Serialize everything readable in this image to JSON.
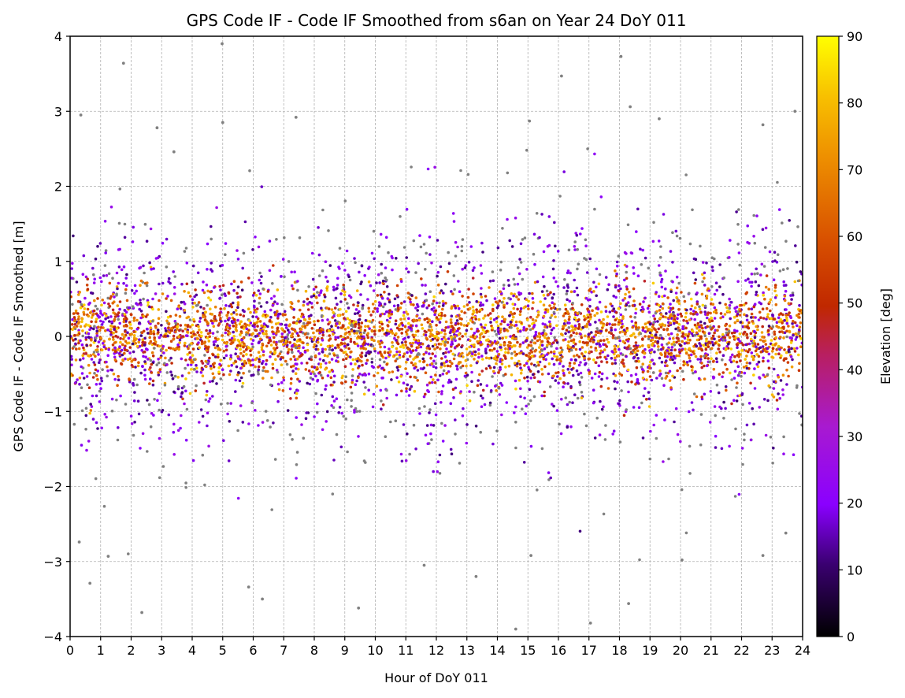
{
  "chart_data": {
    "type": "scatter",
    "title": "GPS Code IF - Code IF Smoothed from s6an on Year 24 DoY 011",
    "xlabel": "Hour of DoY 011",
    "ylabel": "GPS Code IF - Code IF Smoothed [m]",
    "xlim": [
      0,
      24
    ],
    "ylim": [
      -4,
      4
    ],
    "xticks": [
      "0",
      "1",
      "2",
      "3",
      "4",
      "5",
      "6",
      "7",
      "8",
      "9",
      "10",
      "11",
      "12",
      "13",
      "14",
      "15",
      "16",
      "17",
      "18",
      "19",
      "20",
      "21",
      "22",
      "23",
      "24"
    ],
    "yticks": [
      "−4",
      "−3",
      "−2",
      "−1",
      "0",
      "1",
      "2",
      "3",
      "4"
    ],
    "grid": true,
    "colorbar": {
      "label": "Elevation [deg]",
      "range": [
        0,
        90
      ],
      "ticks": [
        "0",
        "10",
        "20",
        "30",
        "40",
        "50",
        "60",
        "70",
        "80",
        "90"
      ],
      "colormap": "gnuplot",
      "masked_color": "#808080"
    },
    "distribution": {
      "description_values": "residuals concentrated within ±1 m, mean ≈ 0, scattered outliers out to about ±3.9 m",
      "core_sigma_m": 0.4,
      "outer_sigma_m": 0.85,
      "outliers": [
        {
          "x": 4.98,
          "y": 3.9
        },
        {
          "x": 1.75,
          "y": 3.64
        },
        {
          "x": 18.05,
          "y": 3.73
        },
        {
          "x": 16.1,
          "y": 3.47
        },
        {
          "x": 18.35,
          "y": 3.06
        },
        {
          "x": 5.0,
          "y": 2.85
        },
        {
          "x": 0.35,
          "y": 2.95
        },
        {
          "x": 7.4,
          "y": 2.92
        },
        {
          "x": 23.75,
          "y": 3.0
        },
        {
          "x": 19.3,
          "y": 2.9
        },
        {
          "x": 22.7,
          "y": 2.82
        },
        {
          "x": 15.05,
          "y": 2.87
        },
        {
          "x": 2.85,
          "y": 2.78
        },
        {
          "x": 3.4,
          "y": 2.46
        },
        {
          "x": 0.65,
          "y": -3.29
        },
        {
          "x": 2.35,
          "y": -3.68
        },
        {
          "x": 5.85,
          "y": -3.34
        },
        {
          "x": 6.3,
          "y": -3.5
        },
        {
          "x": 9.45,
          "y": -3.62
        },
        {
          "x": 14.6,
          "y": -3.9
        },
        {
          "x": 17.05,
          "y": -3.82
        },
        {
          "x": 18.3,
          "y": -3.56
        },
        {
          "x": 13.3,
          "y": -3.2
        },
        {
          "x": 11.6,
          "y": -3.05
        },
        {
          "x": 20.05,
          "y": -2.98
        },
        {
          "x": 1.25,
          "y": -2.93
        },
        {
          "x": 0.3,
          "y": -2.74
        },
        {
          "x": 23.45,
          "y": -2.62
        },
        {
          "x": 22.7,
          "y": -2.92
        },
        {
          "x": 15.1,
          "y": -2.92
        }
      ]
    }
  }
}
